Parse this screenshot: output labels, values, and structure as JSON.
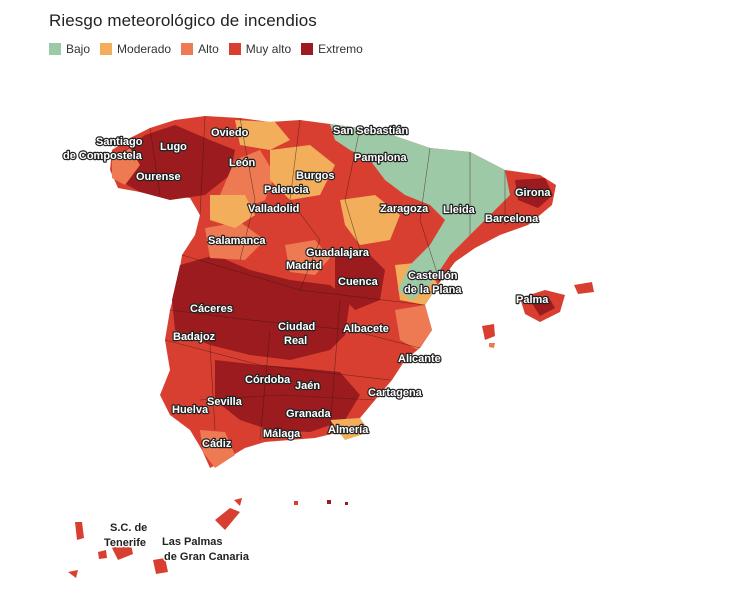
{
  "title": "Riesgo meteorológico de incendios",
  "legend": [
    {
      "label": "Bajo",
      "color": "#9ec9a6"
    },
    {
      "label": "Moderado",
      "color": "#f2ae5b"
    },
    {
      "label": "Alto",
      "color": "#ed7a52"
    },
    {
      "label": "Muy alto",
      "color": "#d93f30"
    },
    {
      "label": "Extremo",
      "color": "#9b1b1e"
    }
  ],
  "cities": {
    "santiago_1": "Santiago",
    "santiago_2": "de Compostela",
    "lugo": "Lugo",
    "oviedo": "Oviedo",
    "san_sebastian": "San Sebastián",
    "ourense": "Ourense",
    "leon": "León",
    "pamplona": "Pamplona",
    "burgos": "Burgos",
    "palencia": "Palencia",
    "girona": "Girona",
    "valladolid": "Valladolid",
    "zaragoza": "Zaragoza",
    "lleida": "Lleida",
    "barcelona": "Barcelona",
    "salamanca": "Salamanca",
    "guadalajara": "Guadalajara",
    "madrid": "Madrid",
    "castellon_1": "Castellón",
    "castellon_2": "de la Plana",
    "cuenca": "Cuenca",
    "palma": "Palma",
    "caceres": "Cáceres",
    "badajoz": "Badajoz",
    "ciudad_real_1": "Ciudad",
    "ciudad_real_2": "Real",
    "albacete": "Albacete",
    "alicante": "Alicante",
    "cordoba": "Córdoba",
    "jaen": "Jaén",
    "sevilla": "Sevilla",
    "huelva": "Huelva",
    "cartagena": "Cartagena",
    "granada": "Granada",
    "cadiz": "Cádiz",
    "malaga": "Málaga",
    "almeria": "Almería",
    "sc_tenerife_1": "S.C. de",
    "sc_tenerife_2": "Tenerife",
    "las_palmas_1": "Las Palmas",
    "las_palmas_2": "de Gran Canaria"
  }
}
